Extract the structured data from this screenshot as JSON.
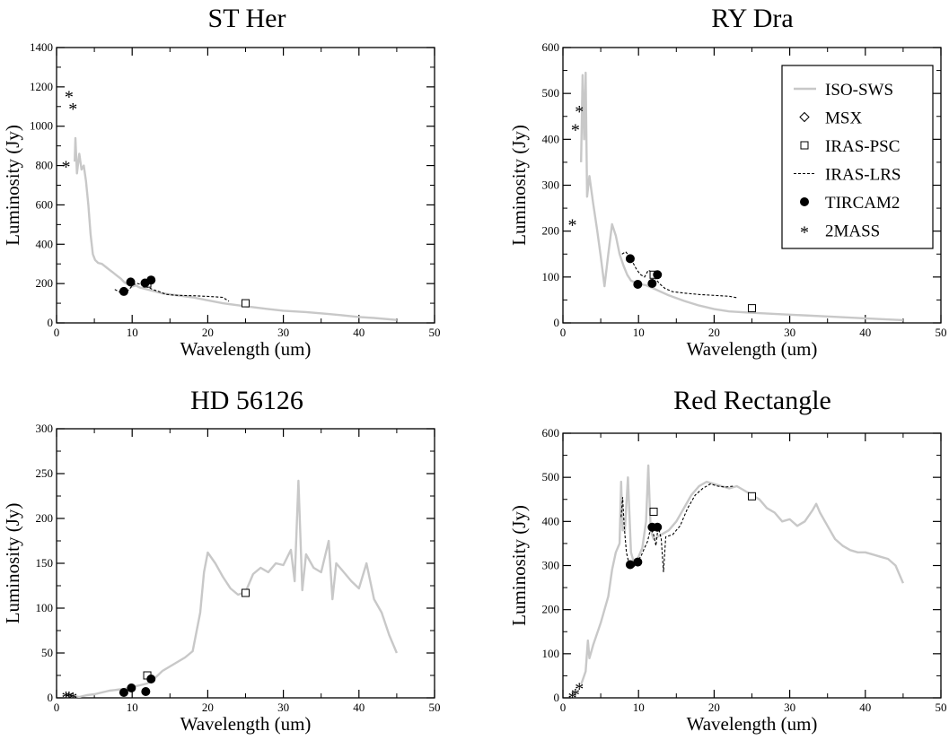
{
  "chart_data": [
    {
      "type": "line",
      "title": "ST Her",
      "xlabel": "Wavelength (um)",
      "ylabel": "Luminosity (Jy)",
      "xlim": [
        0,
        50
      ],
      "ylim": [
        0,
        1400
      ],
      "xticks": [
        "0",
        "10",
        "20",
        "30",
        "40",
        "50"
      ],
      "yticks": [
        "0",
        "200",
        "400",
        "600",
        "800",
        "1000",
        "1200",
        "1400"
      ],
      "series": {
        "iso_sws": [
          [
            2.4,
            820
          ],
          [
            2.5,
            940
          ],
          [
            2.7,
            760
          ],
          [
            3.0,
            860
          ],
          [
            3.3,
            780
          ],
          [
            3.6,
            800
          ],
          [
            3.9,
            720
          ],
          [
            4.2,
            600
          ],
          [
            4.5,
            450
          ],
          [
            4.8,
            350
          ],
          [
            5.1,
            320
          ],
          [
            5.5,
            305
          ],
          [
            6.0,
            300
          ],
          [
            6.5,
            285
          ],
          [
            7.0,
            270
          ],
          [
            7.5,
            255
          ],
          [
            8.0,
            240
          ],
          [
            8.5,
            225
          ],
          [
            9.0,
            205
          ],
          [
            9.5,
            195
          ],
          [
            10.0,
            185
          ],
          [
            10.5,
            190
          ],
          [
            11.0,
            180
          ],
          [
            12.0,
            170
          ],
          [
            13.0,
            160
          ],
          [
            14.0,
            150
          ],
          [
            16.0,
            140
          ],
          [
            18.0,
            130
          ],
          [
            20.0,
            115
          ],
          [
            22.0,
            100
          ],
          [
            25.0,
            85
          ],
          [
            28.0,
            70
          ],
          [
            30.0,
            62
          ],
          [
            33.0,
            55
          ],
          [
            36.0,
            45
          ],
          [
            38.0,
            38
          ],
          [
            40.0,
            30
          ],
          [
            42.0,
            25
          ],
          [
            45.0,
            15
          ]
        ],
        "iras_lrs": [
          [
            7.7,
            170
          ],
          [
            8.2,
            160
          ],
          [
            8.7,
            150
          ],
          [
            9.2,
            155
          ],
          [
            9.7,
            175
          ],
          [
            10.2,
            195
          ],
          [
            10.7,
            200
          ],
          [
            11.2,
            195
          ],
          [
            11.7,
            185
          ],
          [
            12.2,
            180
          ],
          [
            12.7,
            170
          ],
          [
            13.5,
            160
          ],
          [
            14.5,
            145
          ],
          [
            16.0,
            140
          ],
          [
            18.0,
            138
          ],
          [
            20.0,
            135
          ],
          [
            22.0,
            130
          ],
          [
            22.8,
            110
          ]
        ],
        "iras_psc": [
          [
            12.0,
            200
          ],
          [
            25.0,
            100
          ]
        ],
        "tircam2": [
          [
            8.9,
            160
          ],
          [
            9.8,
            208
          ],
          [
            11.7,
            203
          ],
          [
            12.5,
            218
          ]
        ],
        "twomass": [
          [
            1.25,
            805
          ],
          [
            1.65,
            1160
          ],
          [
            2.17,
            1100
          ]
        ],
        "msx": []
      }
    },
    {
      "type": "line",
      "title": "RY Dra",
      "xlabel": "Wavelength (um)",
      "ylabel": "Luminosity (Jy)",
      "xlim": [
        0,
        50
      ],
      "ylim": [
        0,
        600
      ],
      "xticks": [
        "0",
        "10",
        "20",
        "30",
        "40",
        "50"
      ],
      "yticks": [
        "0",
        "100",
        "200",
        "300",
        "400",
        "500",
        "600"
      ],
      "legend": {
        "position": "top-right",
        "entries": [
          "ISO-SWS",
          "MSX",
          "IRAS-PSC",
          "IRAS-LRS",
          "TIRCAM2",
          "2MASS"
        ]
      },
      "series": {
        "iso_sws": [
          [
            2.4,
            350
          ],
          [
            2.6,
            540
          ],
          [
            2.8,
            400
          ],
          [
            3.0,
            545
          ],
          [
            3.2,
            275
          ],
          [
            3.5,
            320
          ],
          [
            4.0,
            260
          ],
          [
            4.5,
            205
          ],
          [
            5.0,
            145
          ],
          [
            5.5,
            80
          ],
          [
            6.0,
            150
          ],
          [
            6.5,
            215
          ],
          [
            7.0,
            190
          ],
          [
            7.5,
            150
          ],
          [
            8.0,
            125
          ],
          [
            8.5,
            105
          ],
          [
            9.0,
            92
          ],
          [
            10.0,
            85
          ],
          [
            11.0,
            82
          ],
          [
            12.0,
            75
          ],
          [
            14.0,
            60
          ],
          [
            16.0,
            48
          ],
          [
            18.0,
            38
          ],
          [
            20.0,
            30
          ],
          [
            22.0,
            25
          ],
          [
            25.0,
            22
          ],
          [
            30.0,
            18
          ],
          [
            35.0,
            14
          ],
          [
            40.0,
            10
          ],
          [
            45.0,
            6
          ]
        ],
        "iras_lrs": [
          [
            7.8,
            150
          ],
          [
            8.3,
            155
          ],
          [
            8.8,
            145
          ],
          [
            9.3,
            130
          ],
          [
            9.8,
            115
          ],
          [
            10.3,
            105
          ],
          [
            10.8,
            100
          ],
          [
            11.3,
            115
          ],
          [
            11.8,
            110
          ],
          [
            12.3,
            95
          ],
          [
            12.8,
            85
          ],
          [
            13.5,
            75
          ],
          [
            14.5,
            68
          ],
          [
            16.0,
            65
          ],
          [
            18.0,
            62
          ],
          [
            20.0,
            60
          ],
          [
            22.0,
            58
          ],
          [
            23.0,
            55
          ]
        ],
        "iras_psc": [
          [
            12.0,
            105
          ],
          [
            25.0,
            32
          ]
        ],
        "tircam2": [
          [
            8.9,
            140
          ],
          [
            9.9,
            84
          ],
          [
            11.8,
            86
          ],
          [
            12.5,
            105
          ]
        ],
        "twomass": [
          [
            1.25,
            218
          ],
          [
            1.65,
            425
          ],
          [
            2.17,
            465
          ]
        ],
        "msx": []
      }
    },
    {
      "type": "line",
      "title": "HD 56126",
      "xlabel": "Wavelength (um)",
      "ylabel": "Luminosity (Jy)",
      "xlim": [
        0,
        50
      ],
      "ylim": [
        0,
        300
      ],
      "xticks": [
        "0",
        "10",
        "20",
        "30",
        "40",
        "50"
      ],
      "yticks": [
        "0",
        "50",
        "100",
        "150",
        "200",
        "250",
        "300"
      ],
      "series": {
        "iso_sws": [
          [
            2.4,
            2
          ],
          [
            3.0,
            1
          ],
          [
            4.0,
            3
          ],
          [
            5.0,
            4
          ],
          [
            6.0,
            6
          ],
          [
            7.0,
            8
          ],
          [
            8.0,
            9
          ],
          [
            9.0,
            10
          ],
          [
            10.0,
            12
          ],
          [
            11.0,
            14
          ],
          [
            12.0,
            16
          ],
          [
            13.0,
            22
          ],
          [
            14.0,
            30
          ],
          [
            15.0,
            35
          ],
          [
            16.0,
            40
          ],
          [
            17.0,
            45
          ],
          [
            18.0,
            52
          ],
          [
            19.0,
            95
          ],
          [
            19.5,
            140
          ],
          [
            20.0,
            162
          ],
          [
            21.0,
            150
          ],
          [
            22.0,
            135
          ],
          [
            23.0,
            122
          ],
          [
            24.0,
            115
          ],
          [
            25.0,
            118
          ],
          [
            26.0,
            138
          ],
          [
            27.0,
            145
          ],
          [
            28.0,
            140
          ],
          [
            29.0,
            150
          ],
          [
            30.0,
            148
          ],
          [
            31.0,
            165
          ],
          [
            31.5,
            130
          ],
          [
            32.0,
            242
          ],
          [
            32.5,
            120
          ],
          [
            33.0,
            160
          ],
          [
            34.0,
            145
          ],
          [
            35.0,
            140
          ],
          [
            36.0,
            175
          ],
          [
            36.5,
            110
          ],
          [
            37.0,
            150
          ],
          [
            38.0,
            140
          ],
          [
            39.0,
            130
          ],
          [
            40.0,
            122
          ],
          [
            41.0,
            150
          ],
          [
            42.0,
            110
          ],
          [
            43.0,
            95
          ],
          [
            44.0,
            70
          ],
          [
            45.0,
            50
          ]
        ],
        "iras_lrs": [],
        "iras_psc": [
          [
            12.0,
            25
          ],
          [
            25.0,
            117
          ]
        ],
        "tircam2": [
          [
            8.9,
            6
          ],
          [
            9.9,
            11
          ],
          [
            11.8,
            7
          ],
          [
            12.5,
            21
          ]
        ],
        "twomass": [
          [
            1.25,
            3
          ],
          [
            1.65,
            3
          ],
          [
            2.17,
            2
          ]
        ],
        "msx": []
      }
    },
    {
      "type": "line",
      "title": "Red Rectangle",
      "xlabel": "Wavelength (um)",
      "ylabel": "Luminosity (Jy)",
      "xlim": [
        0,
        50
      ],
      "ylim": [
        0,
        600
      ],
      "xticks": [
        "0",
        "10",
        "20",
        "30",
        "40",
        "50"
      ],
      "yticks": [
        "0",
        "100",
        "200",
        "300",
        "400",
        "500",
        "600"
      ],
      "series": {
        "iso_sws": [
          [
            2.4,
            30
          ],
          [
            3.0,
            60
          ],
          [
            3.3,
            130
          ],
          [
            3.5,
            90
          ],
          [
            4.0,
            120
          ],
          [
            5.0,
            170
          ],
          [
            6.0,
            230
          ],
          [
            6.5,
            290
          ],
          [
            7.0,
            330
          ],
          [
            7.5,
            350
          ],
          [
            7.7,
            490
          ],
          [
            7.9,
            380
          ],
          [
            8.2,
            380
          ],
          [
            8.6,
            500
          ],
          [
            9.0,
            330
          ],
          [
            9.5,
            300
          ],
          [
            10.0,
            320
          ],
          [
            10.5,
            340
          ],
          [
            11.0,
            400
          ],
          [
            11.3,
            527
          ],
          [
            11.6,
            380
          ],
          [
            12.0,
            360
          ],
          [
            13.0,
            370
          ],
          [
            14.0,
            380
          ],
          [
            15.0,
            400
          ],
          [
            16.0,
            430
          ],
          [
            17.0,
            460
          ],
          [
            18.0,
            480
          ],
          [
            19.0,
            490
          ],
          [
            20.0,
            485
          ],
          [
            21.0,
            480
          ],
          [
            22.0,
            475
          ],
          [
            23.0,
            480
          ],
          [
            24.0,
            470
          ],
          [
            25.0,
            460
          ],
          [
            26.0,
            450
          ],
          [
            27.0,
            430
          ],
          [
            28.0,
            420
          ],
          [
            29.0,
            400
          ],
          [
            30.0,
            405
          ],
          [
            31.0,
            390
          ],
          [
            32.0,
            400
          ],
          [
            33.0,
            425
          ],
          [
            33.5,
            440
          ],
          [
            34.0,
            420
          ],
          [
            35.0,
            390
          ],
          [
            36.0,
            360
          ],
          [
            37.0,
            345
          ],
          [
            38.0,
            335
          ],
          [
            39.0,
            330
          ],
          [
            40.0,
            330
          ],
          [
            41.0,
            325
          ],
          [
            42.0,
            320
          ],
          [
            43.0,
            315
          ],
          [
            44.0,
            300
          ],
          [
            45.0,
            260
          ]
        ],
        "iras_lrs": [
          [
            7.7,
            410
          ],
          [
            7.9,
            455
          ],
          [
            8.1,
            390
          ],
          [
            8.4,
            330
          ],
          [
            8.8,
            300
          ],
          [
            9.3,
            295
          ],
          [
            9.8,
            310
          ],
          [
            10.3,
            320
          ],
          [
            10.8,
            340
          ],
          [
            11.2,
            355
          ],
          [
            11.6,
            385
          ],
          [
            12.0,
            370
          ],
          [
            12.3,
            345
          ],
          [
            12.6,
            390
          ],
          [
            13.0,
            360
          ],
          [
            13.3,
            285
          ],
          [
            13.6,
            365
          ],
          [
            14.5,
            370
          ],
          [
            15.5,
            390
          ],
          [
            16.5,
            430
          ],
          [
            17.5,
            460
          ],
          [
            18.5,
            475
          ],
          [
            19.5,
            485
          ],
          [
            20.5,
            480
          ],
          [
            21.5,
            478
          ],
          [
            22.5,
            480
          ]
        ],
        "iras_psc": [
          [
            12.0,
            422
          ],
          [
            25.0,
            457
          ]
        ],
        "tircam2": [
          [
            8.9,
            302
          ],
          [
            9.9,
            308
          ],
          [
            11.8,
            387
          ],
          [
            12.5,
            387
          ]
        ],
        "twomass": [
          [
            1.25,
            5
          ],
          [
            1.65,
            12
          ],
          [
            2.17,
            25
          ]
        ],
        "msx": []
      }
    }
  ]
}
